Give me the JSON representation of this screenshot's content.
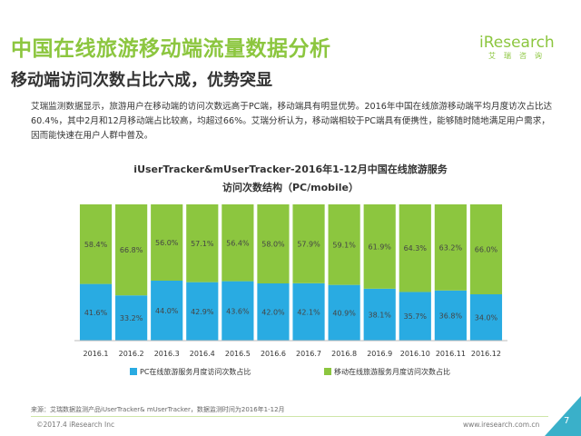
{
  "header": {
    "title": "中国在线旅游移动端流量数据分析",
    "subtitle": "移动端访问次数占比六成，优势突显"
  },
  "logo": {
    "text": "iResearch",
    "sub": "艾瑞咨询"
  },
  "paragraph": "艾瑞监测数据显示，旅游用户在移动端的访问次数远高于PC端，移动端具有明显优势。2016年中国在线旅游移动端平均月度访次占比达60.4%，其中2月和12月移动端占比较高，均超过66%。艾瑞分析认为，移动端相较于PC端具有便携性，能够随时随地满足用户需求，因而能快速在用户人群中普及。",
  "colors": {
    "pc": "#29abe2",
    "mobile": "#8cc63f",
    "title": "#8cc63f",
    "accent": "#3ab0c9"
  },
  "chart_data": {
    "type": "bar",
    "stacked": true,
    "percent": true,
    "title": "iUserTracker&mUserTracker-2016年1-12月中国在线旅游服务",
    "subtitle": "访问次数结构（PC/mobile）",
    "categories": [
      "2016.1",
      "2016.2",
      "2016.3",
      "2016.4",
      "2016.5",
      "2016.6",
      "2016.7",
      "2016.8",
      "2016.9",
      "2016.10",
      "2016.11",
      "2016.12"
    ],
    "series": [
      {
        "name": "PC在线旅游服务月度访问次数占比",
        "values": [
          41.6,
          33.2,
          44.0,
          42.9,
          43.6,
          42.0,
          42.1,
          40.9,
          38.1,
          35.7,
          36.8,
          34.0
        ],
        "labels": [
          "41.6%",
          "33.2%",
          "44.0%",
          "42.9%",
          "43.6%",
          "42.0%",
          "42.1%",
          "40.9%",
          "38.1%",
          "35.7%",
          "36.8%",
          "34.0%"
        ]
      },
      {
        "name": "移动在线旅游服务月度访问次数占比",
        "values": [
          58.4,
          66.8,
          56.0,
          57.1,
          56.4,
          58.0,
          57.9,
          59.1,
          61.9,
          64.3,
          63.2,
          66.0
        ],
        "labels": [
          "58.4%",
          "66.8%",
          "56.0%",
          "57.1%",
          "56.4%",
          "58.0%",
          "57.9%",
          "59.1%",
          "61.9%",
          "64.3%",
          "63.2%",
          "66.0%"
        ]
      }
    ],
    "ylim": [
      0,
      100
    ],
    "legend": "bottom-center",
    "grid": false
  },
  "footer": {
    "source": "来源：艾瑞数据监测产品iUserTracker& mUserTracker，数据监测时间为2016年1-12月",
    "copyright": "©2017.4 iResearch Inc",
    "website": "www.iresearch.com.cn",
    "page": "7"
  }
}
